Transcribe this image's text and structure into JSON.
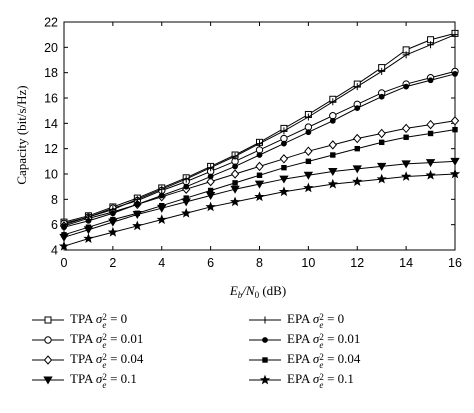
{
  "chart_data": {
    "type": "line",
    "title": "",
    "xlabel": "E_b/N_0 (dB)",
    "xlabel_parts": {
      "main": "E",
      "sub1": "b",
      "slash": "/N",
      "sub2": "0",
      "unit": " (dB)"
    },
    "ylabel": "Capacity (bit/s/Hz)",
    "xlim": [
      0,
      16
    ],
    "ylim": [
      4,
      22
    ],
    "xticks": [
      "0",
      "2",
      "4",
      "6",
      "8",
      "10",
      "12",
      "14",
      "16"
    ],
    "yticks": [
      "4",
      "6",
      "8",
      "10",
      "12",
      "14",
      "16",
      "18",
      "20",
      "22"
    ],
    "grid": false,
    "legend_placement": "bottom",
    "x": [
      0,
      1,
      2,
      3,
      4,
      5,
      6,
      7,
      8,
      9,
      10,
      11,
      12,
      13,
      14,
      15,
      16
    ],
    "series": [
      {
        "name": "TPA σe2 = 0",
        "name_prefix": "TPA",
        "sigma_value": "0",
        "marker": "square",
        "values": [
          6.2,
          6.7,
          7.4,
          8.1,
          8.9,
          9.7,
          10.6,
          11.5,
          12.5,
          13.6,
          14.7,
          15.9,
          17.1,
          18.4,
          19.8,
          20.6,
          21.1
        ]
      },
      {
        "name": "TPA σe2 = 0.01",
        "name_prefix": "TPA",
        "sigma_value": "0.01",
        "marker": "circle",
        "values": [
          6.1,
          6.6,
          7.3,
          7.9,
          8.7,
          9.4,
          10.2,
          11.0,
          11.9,
          12.8,
          13.7,
          14.6,
          15.5,
          16.4,
          17.1,
          17.6,
          18.1
        ]
      },
      {
        "name": "TPA σe2 = 0.04",
        "name_prefix": "TPA",
        "sigma_value": "0.04",
        "marker": "diamond",
        "values": [
          5.9,
          6.5,
          7.0,
          7.6,
          8.2,
          8.8,
          9.4,
          10.0,
          10.6,
          11.2,
          11.8,
          12.3,
          12.8,
          13.2,
          13.6,
          13.9,
          14.2
        ]
      },
      {
        "name": "TPA σe2 = 0.1",
        "name_prefix": "TPA",
        "sigma_value": "0.1",
        "marker": "triangle-down",
        "values": [
          5.0,
          5.6,
          6.2,
          6.8,
          7.3,
          7.8,
          8.3,
          8.8,
          9.2,
          9.6,
          9.9,
          10.2,
          10.4,
          10.6,
          10.8,
          10.9,
          11.0
        ]
      },
      {
        "name": "EPA σe2 = 0",
        "name_prefix": "EPA",
        "sigma_value": "0",
        "marker": "plus",
        "values": [
          6.0,
          6.6,
          7.2,
          8.0,
          8.8,
          9.6,
          10.5,
          11.4,
          12.4,
          13.4,
          14.5,
          15.7,
          16.9,
          18.1,
          19.4,
          20.2,
          21.0
        ]
      },
      {
        "name": "EPA σe2 = 0.01",
        "name_prefix": "EPA",
        "sigma_value": "0.01",
        "marker": "dot",
        "values": [
          5.8,
          6.3,
          6.9,
          7.6,
          8.3,
          9.0,
          9.8,
          10.6,
          11.5,
          12.4,
          13.3,
          14.2,
          15.2,
          16.1,
          16.9,
          17.4,
          17.9
        ]
      },
      {
        "name": "EPA σe2 = 0.04",
        "name_prefix": "EPA",
        "sigma_value": "0.04",
        "marker": "small-square",
        "values": [
          5.2,
          5.8,
          6.4,
          6.9,
          7.5,
          8.1,
          8.7,
          9.3,
          9.9,
          10.5,
          11.0,
          11.5,
          12.0,
          12.5,
          12.9,
          13.2,
          13.5
        ]
      },
      {
        "name": "EPA σe2 = 0.1",
        "name_prefix": "EPA",
        "sigma_value": "0.1",
        "marker": "star",
        "values": [
          4.3,
          4.9,
          5.4,
          5.9,
          6.4,
          6.9,
          7.4,
          7.8,
          8.2,
          8.6,
          8.9,
          9.2,
          9.4,
          9.6,
          9.8,
          9.9,
          10.0
        ]
      }
    ]
  }
}
